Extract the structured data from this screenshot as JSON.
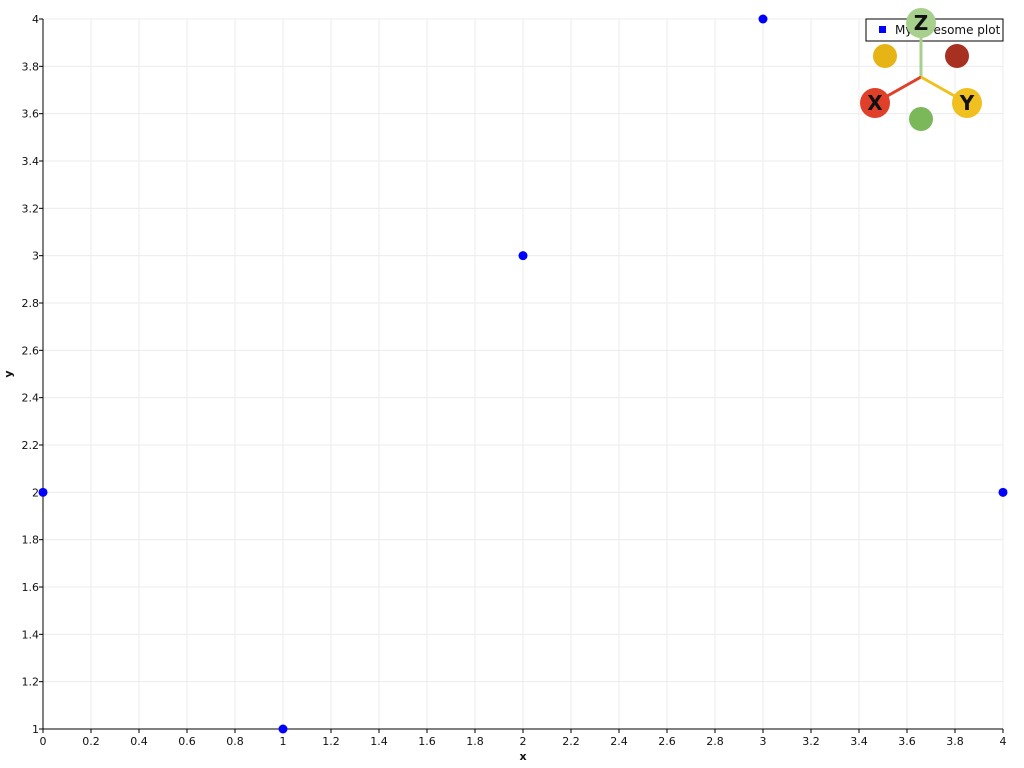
{
  "chart_data": {
    "type": "scatter",
    "title": "",
    "xlabel": "x",
    "ylabel": "y",
    "xlim": [
      0,
      4
    ],
    "ylim": [
      1,
      4
    ],
    "grid": true,
    "legend_position": "top-right",
    "x_ticks": [
      "0",
      "0.2",
      "0.4",
      "0.6",
      "0.8",
      "1",
      "1.2",
      "1.4",
      "1.6",
      "1.8",
      "2",
      "2.2",
      "2.4",
      "2.6",
      "2.8",
      "3",
      "3.2",
      "3.4",
      "3.6",
      "3.8",
      "4"
    ],
    "y_ticks": [
      "1",
      "1.2",
      "1.4",
      "1.6",
      "1.8",
      "2",
      "2.2",
      "2.4",
      "2.6",
      "2.8",
      "3",
      "3.2",
      "3.4",
      "3.6",
      "3.8",
      "4"
    ],
    "series": [
      {
        "name": "My awesome plot",
        "color": "#0000ff",
        "x": [
          0,
          1,
          2,
          3,
          4
        ],
        "y": [
          2,
          1,
          3,
          4,
          2
        ]
      }
    ]
  },
  "orientation_widget": {
    "labels": {
      "x": "X",
      "y": "Y",
      "z": "Z"
    },
    "colors": {
      "x": "#e0402a",
      "y": "#f0c020",
      "z": "#a8d08d",
      "neg_x": "#a83020",
      "neg_y": "#e6b414",
      "neg_z": "#7ab85a"
    }
  }
}
